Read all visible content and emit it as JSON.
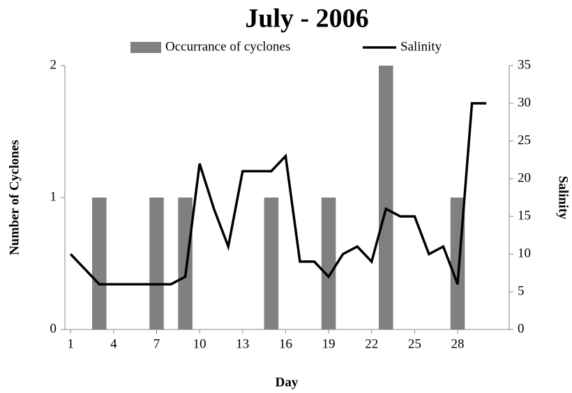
{
  "chart_data": {
    "type": "bar_line",
    "title": "July - 2006",
    "xlabel": "Day",
    "ylabel": "Number of Cyclones",
    "y2label": "Salinity",
    "x": [
      1,
      2,
      3,
      4,
      5,
      6,
      7,
      8,
      9,
      10,
      11,
      12,
      13,
      14,
      15,
      16,
      17,
      18,
      19,
      20,
      21,
      22,
      23,
      24,
      25,
      26,
      27,
      28,
      29,
      30
    ],
    "xlim": [
      0.6,
      31.6
    ],
    "xticks": [
      1,
      4,
      7,
      10,
      13,
      16,
      19,
      22,
      25,
      28
    ],
    "ylim": [
      0,
      2
    ],
    "yticks": [
      0,
      1,
      2
    ],
    "y2lim": [
      0,
      35
    ],
    "y2ticks": [
      0,
      5,
      10,
      15,
      20,
      25,
      30,
      35
    ],
    "series": [
      {
        "name": "Occurrance of cyclones",
        "type": "bar",
        "color": "#808080",
        "values": [
          0,
          0,
          1,
          0,
          0,
          0,
          1,
          0,
          1,
          0,
          0,
          0,
          0,
          0,
          1,
          0,
          0,
          0,
          1,
          0,
          0,
          0,
          2,
          0,
          0,
          0,
          0,
          1,
          0,
          0
        ]
      },
      {
        "name": "Salinity",
        "type": "line",
        "axis": "y2",
        "color": "#000000",
        "values": [
          10,
          8,
          6,
          6,
          6,
          6,
          6,
          6,
          7,
          22,
          16,
          11,
          21,
          21,
          21,
          23,
          9,
          9,
          7,
          10,
          11,
          9,
          16,
          15,
          15,
          10,
          11,
          6,
          30,
          30
        ]
      }
    ]
  }
}
